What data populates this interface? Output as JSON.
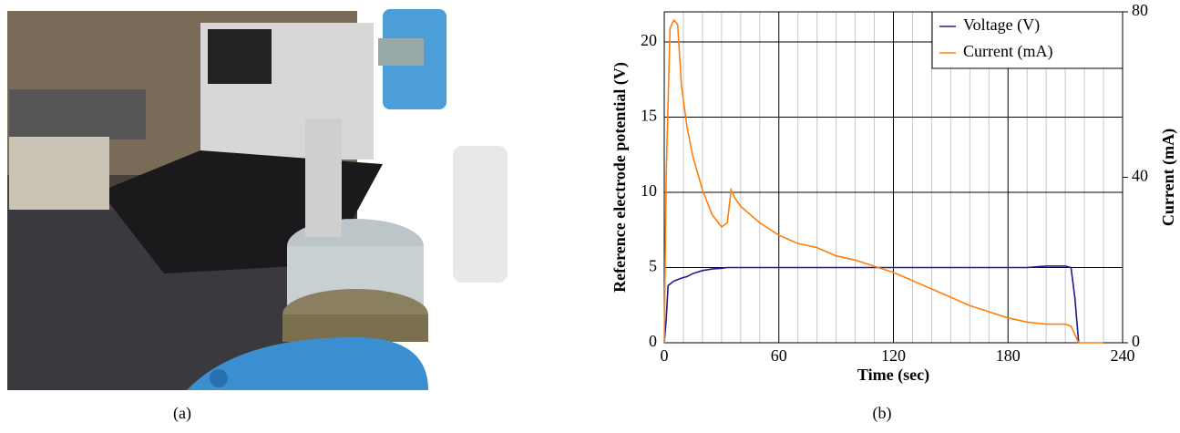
{
  "figure": {
    "labels": [
      "(a)",
      "(b)"
    ]
  },
  "chart_data": {
    "type": "line",
    "x_label": "Time (sec)",
    "y_label": "Reference electrode potential (V)",
    "y2_label": "Current (mA)",
    "x": [
      0,
      1,
      2,
      3,
      5,
      7,
      9,
      12,
      15,
      20,
      25,
      30,
      33,
      35,
      37,
      40,
      50,
      60,
      70,
      80,
      90,
      100,
      110,
      120,
      130,
      140,
      150,
      160,
      170,
      180,
      190,
      200,
      210,
      213,
      215,
      217,
      230
    ],
    "series": [
      {
        "name": "Voltage (V)",
        "color": "#1c1c8c",
        "values": [
          0,
          1.5,
          3.8,
          3.9,
          4.1,
          4.2,
          4.3,
          4.4,
          4.6,
          4.8,
          4.9,
          4.95,
          5.0,
          5.0,
          5.0,
          5.0,
          5.0,
          5.0,
          5.0,
          5.0,
          5.0,
          5.0,
          5.0,
          5.0,
          5.0,
          5.0,
          5.0,
          5.0,
          5.0,
          5.0,
          5.0,
          5.1,
          5.1,
          5.0,
          3.0,
          0,
          null
        ]
      },
      {
        "name": "Current (mA)",
        "color": "#ff7f0e",
        "axis": "y2",
        "values": [
          0,
          40,
          58,
          76,
          78,
          77,
          62,
          52,
          45,
          37,
          31,
          28,
          29,
          37,
          35,
          33,
          29,
          26,
          24,
          23,
          21,
          20,
          18.5,
          17,
          15,
          13,
          11,
          9,
          7.5,
          6,
          5,
          4.5,
          4.5,
          4,
          2,
          0,
          0
        ]
      }
    ],
    "xlim": [
      0,
      240
    ],
    "xticks": [
      0,
      60,
      120,
      180,
      240
    ],
    "xminorticks": [
      10,
      20,
      30,
      40,
      50,
      70,
      80,
      90,
      100,
      110,
      130,
      140,
      150,
      160,
      170,
      190,
      200,
      210,
      220,
      230
    ],
    "ylim": [
      0,
      22
    ],
    "yticks": [
      0,
      5,
      10,
      15,
      20
    ],
    "y2lim": [
      0,
      80
    ],
    "y2ticks": [
      0,
      40,
      80
    ],
    "grid": true,
    "legend": "upper right"
  }
}
